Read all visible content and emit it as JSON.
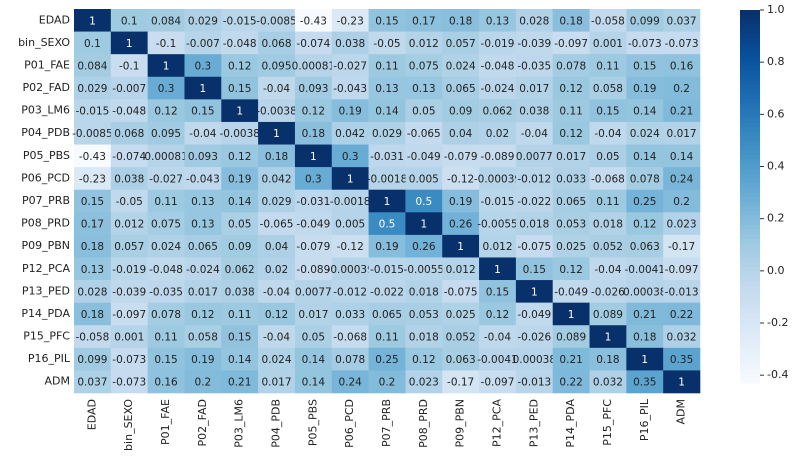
{
  "chart_data": {
    "type": "heatmap",
    "x_categories": [
      "EDAD",
      "bin_SEXO",
      "P01_FAE",
      "P02_FAD",
      "P03_LM6",
      "P04_PDB",
      "P05_PBS",
      "P06_PCD",
      "P07_PRB",
      "P08_PRD",
      "P09_PBN",
      "P12_PCA",
      "P13_PED",
      "P14_PDA",
      "P15_PFC",
      "P16_PIL",
      "ADM"
    ],
    "y_categories": [
      "EDAD",
      "bin_SEXO",
      "P01_FAE",
      "P02_FAD",
      "P03_LM6",
      "P04_PDB",
      "P05_PBS",
      "P06_PCD",
      "P07_PRB",
      "P08_PRD",
      "P09_PBN",
      "P12_PCA",
      "P13_PED",
      "P14_PDA",
      "P15_PFC",
      "P16_PIL",
      "ADM"
    ],
    "values": [
      [
        1,
        0.1,
        0.084,
        0.029,
        -0.015,
        -0.0085,
        -0.43,
        -0.23,
        0.15,
        0.17,
        0.18,
        0.13,
        0.028,
        0.18,
        -0.058,
        0.099,
        0.037
      ],
      [
        0.1,
        1,
        -0.1,
        -0.007,
        -0.048,
        0.068,
        -0.074,
        0.038,
        -0.05,
        0.012,
        0.057,
        -0.019,
        -0.039,
        -0.097,
        0.001,
        -0.073,
        -0.073
      ],
      [
        0.084,
        -0.1,
        1,
        0.3,
        0.12,
        0.095,
        0.00081,
        -0.027,
        0.11,
        0.075,
        0.024,
        -0.048,
        -0.035,
        0.078,
        0.11,
        0.15,
        0.16
      ],
      [
        0.029,
        -0.007,
        0.3,
        1,
        0.15,
        -0.04,
        0.093,
        -0.043,
        0.13,
        0.13,
        0.065,
        -0.024,
        0.017,
        0.12,
        0.058,
        0.19,
        0.2
      ],
      [
        -0.015,
        -0.048,
        0.12,
        0.15,
        1,
        -0.0038,
        0.12,
        0.19,
        0.14,
        0.05,
        0.09,
        0.062,
        0.038,
        0.11,
        0.15,
        0.14,
        0.21
      ],
      [
        -0.0085,
        0.068,
        0.095,
        -0.04,
        -0.0038,
        1,
        0.18,
        0.042,
        0.029,
        -0.065,
        0.04,
        0.02,
        -0.04,
        0.12,
        -0.04,
        0.024,
        0.017
      ],
      [
        -0.43,
        -0.074,
        0.00081,
        0.093,
        0.12,
        0.18,
        1,
        0.3,
        -0.031,
        -0.049,
        -0.079,
        -0.089,
        0.0077,
        0.017,
        0.05,
        0.14,
        0.14
      ],
      [
        -0.23,
        0.038,
        -0.027,
        -0.043,
        0.19,
        0.042,
        0.3,
        1,
        -0.0018,
        0.005,
        -0.12,
        -0.00039,
        -0.012,
        0.033,
        -0.068,
        0.078,
        0.24
      ],
      [
        0.15,
        -0.05,
        0.11,
        0.13,
        0.14,
        0.029,
        -0.031,
        -0.0018,
        1,
        0.5,
        0.19,
        -0.015,
        -0.022,
        0.065,
        0.11,
        0.25,
        0.2
      ],
      [
        0.17,
        0.012,
        0.075,
        0.13,
        0.05,
        -0.065,
        -0.049,
        0.005,
        0.5,
        1,
        0.26,
        -0.0055,
        0.018,
        0.053,
        0.018,
        0.12,
        0.023
      ],
      [
        0.18,
        0.057,
        0.024,
        0.065,
        0.09,
        0.04,
        -0.079,
        -0.12,
        0.19,
        0.26,
        1,
        0.012,
        -0.075,
        0.025,
        0.052,
        0.063,
        -0.17
      ],
      [
        0.13,
        -0.019,
        -0.048,
        -0.024,
        0.062,
        0.02,
        -0.089,
        -0.00039,
        -0.015,
        -0.0055,
        0.012,
        1,
        0.15,
        0.12,
        -0.04,
        -0.0041,
        -0.097
      ],
      [
        0.028,
        -0.039,
        -0.035,
        0.017,
        0.038,
        -0.04,
        0.0077,
        -0.012,
        -0.022,
        0.018,
        -0.075,
        0.15,
        1,
        -0.049,
        -0.026,
        0.00038,
        -0.013
      ],
      [
        0.18,
        -0.097,
        0.078,
        0.12,
        0.11,
        0.12,
        0.017,
        0.033,
        0.065,
        0.053,
        0.025,
        0.12,
        -0.049,
        1,
        0.089,
        0.21,
        0.22
      ],
      [
        -0.058,
        0.001,
        0.11,
        0.058,
        0.15,
        -0.04,
        0.05,
        -0.068,
        0.11,
        0.018,
        0.052,
        -0.04,
        -0.026,
        0.089,
        1,
        0.18,
        0.032
      ],
      [
        0.099,
        -0.073,
        0.15,
        0.19,
        0.14,
        0.024,
        0.14,
        0.078,
        0.25,
        0.12,
        0.063,
        -0.0041,
        0.00038,
        0.21,
        0.18,
        1,
        0.35
      ],
      [
        0.037,
        -0.073,
        0.16,
        0.2,
        0.21,
        0.017,
        0.14,
        0.24,
        0.2,
        0.023,
        -0.17,
        -0.097,
        -0.013,
        0.22,
        0.032,
        0.35,
        1
      ]
    ],
    "colormap": "Blues",
    "clim": [
      -0.43,
      1
    ],
    "colorbar_ticks": [
      -0.4,
      -0.2,
      {
        "value": 0,
        "label": "0.0"
      },
      0.2,
      0.4,
      0.6,
      0.8,
      {
        "value": 1,
        "label": "1.0"
      }
    ]
  }
}
